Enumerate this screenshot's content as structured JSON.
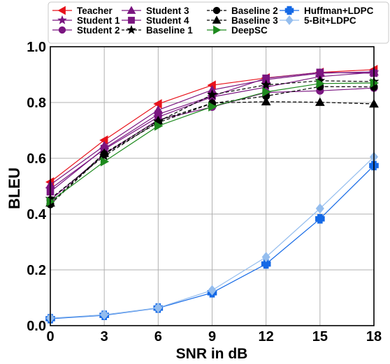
{
  "chart_data": {
    "type": "line",
    "xlabel": "SNR in dB",
    "ylabel": "BLEU",
    "x": [
      0,
      3,
      6,
      9,
      12,
      15,
      18
    ],
    "xlim": [
      0,
      18
    ],
    "ylim": [
      0.0,
      1.0
    ],
    "xticks": [
      "0",
      "3",
      "6",
      "9",
      "12",
      "15",
      "18"
    ],
    "yticks": [
      "0.0",
      "0.2",
      "0.4",
      "0.6",
      "0.8",
      "1.0"
    ],
    "grid": true,
    "legend_position": "top",
    "series": [
      {
        "name": "Teacher",
        "color": "#e8121b",
        "marker": "triangle-left",
        "dash": "solid",
        "values": [
          0.515,
          0.665,
          0.795,
          0.862,
          0.888,
          0.908,
          0.918
        ]
      },
      {
        "name": "Student 1",
        "color": "#7a1580",
        "marker": "star",
        "dash": "solid",
        "values": [
          0.49,
          0.632,
          0.748,
          0.82,
          0.855,
          0.893,
          0.908
        ]
      },
      {
        "name": "Student 2",
        "color": "#7a1580",
        "marker": "circle",
        "dash": "solid",
        "values": [
          0.45,
          0.615,
          0.738,
          0.784,
          0.836,
          0.842,
          0.852
        ]
      },
      {
        "name": "Student 3",
        "color": "#7a1580",
        "marker": "triangle-up",
        "dash": "solid",
        "values": [
          0.505,
          0.645,
          0.773,
          0.845,
          0.882,
          0.905,
          0.91
        ]
      },
      {
        "name": "Student 4",
        "color": "#7a1580",
        "marker": "square",
        "dash": "solid",
        "values": [
          0.48,
          0.635,
          0.758,
          0.823,
          0.887,
          0.908,
          0.905
        ]
      },
      {
        "name": "Baseline 1",
        "color": "#000000",
        "marker": "star",
        "dash": "dashed",
        "values": [
          0.455,
          0.608,
          0.732,
          0.828,
          0.863,
          0.878,
          0.875
        ]
      },
      {
        "name": "Baseline 2",
        "color": "#000000",
        "marker": "circle",
        "dash": "dashed",
        "values": [
          0.435,
          0.615,
          0.728,
          0.797,
          0.823,
          0.857,
          0.856
        ]
      },
      {
        "name": "Baseline 3",
        "color": "#000000",
        "marker": "triangle-up",
        "dash": "dashed",
        "values": [
          0.44,
          0.618,
          0.735,
          0.798,
          0.803,
          0.801,
          0.795
        ]
      },
      {
        "name": "DeepSC",
        "color": "#1e8a1e",
        "marker": "triangle-right",
        "dash": "solid",
        "values": [
          0.445,
          0.588,
          0.716,
          0.785,
          0.838,
          0.868,
          0.87
        ]
      },
      {
        "name": "Huffman+LDPC",
        "color": "#1469e6",
        "marker": "plus",
        "dash": "solid",
        "values": [
          0.025,
          0.037,
          0.063,
          0.118,
          0.221,
          0.383,
          0.574
        ]
      },
      {
        "name": "5-Bit+LDPC",
        "color": "#94bdee",
        "marker": "diamond",
        "dash": "solid",
        "values": [
          0.027,
          0.039,
          0.064,
          0.127,
          0.246,
          0.42,
          0.605
        ]
      }
    ]
  }
}
